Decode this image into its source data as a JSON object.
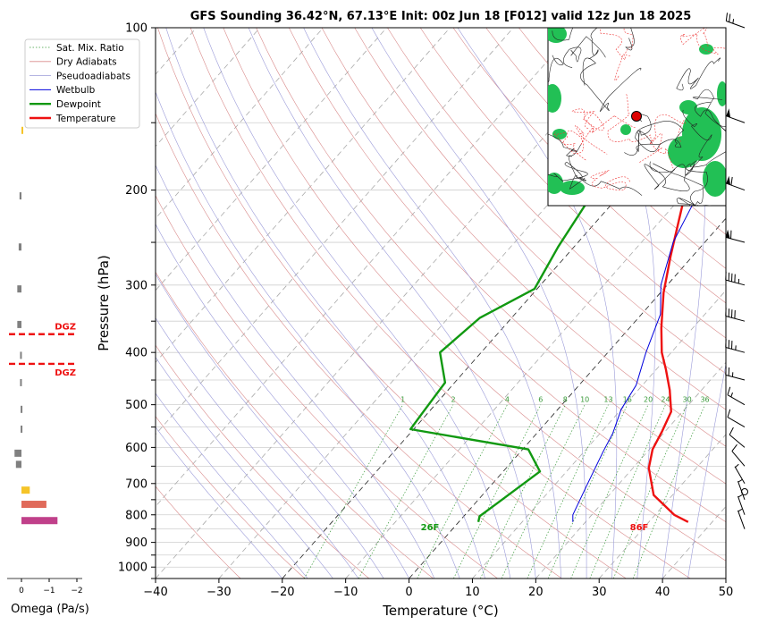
{
  "chart_data": {
    "type": "line",
    "title": "GFS Sounding 36.42°N, 67.13°E Init: 00z Jun 18 [F012] valid 12z Jun 18 2025",
    "xlabel": "Temperature (°C)",
    "ylabel": "Pressure (hPa)",
    "xlim": [
      -40,
      50
    ],
    "ylim": [
      1050,
      100
    ],
    "y_scale": "log",
    "x_ticks": [
      "−40",
      "−30",
      "−20",
      "−10",
      "0",
      "10",
      "20",
      "30",
      "40",
      "50"
    ],
    "y_ticks": [
      "100",
      "200",
      "300",
      "400",
      "500",
      "600",
      "700",
      "800",
      "900",
      "1000"
    ],
    "grid": true,
    "legend_position": "top-left",
    "legend": [
      "Sat. Mix. Ratio",
      "Dry Adiabats",
      "Pseudoadiabats",
      "Wetbulb",
      "Dewpoint",
      "Temperature"
    ],
    "colors": {
      "temperature": "#ee1111",
      "dewpoint": "#119911",
      "wetbulb": "#0000dd",
      "dry_adiabat": "#d98b8b",
      "pseudoadiabat": "#9b9bd9",
      "mix_ratio": "#3a9a3a",
      "dgz": "#ee1111",
      "isotherm": "#999999"
    },
    "series": [
      {
        "name": "Temperature",
        "points": [
          [
            36.2,
            825
          ],
          [
            33,
            800
          ],
          [
            27,
            735
          ],
          [
            22.5,
            655
          ],
          [
            20.5,
            605
          ],
          [
            19.5,
            560
          ],
          [
            18.2,
            515
          ],
          [
            15,
            470
          ],
          [
            11.5,
            430
          ],
          [
            8.5,
            400
          ],
          [
            5,
            360
          ],
          [
            0.5,
            310
          ],
          [
            -3.5,
            265
          ],
          [
            -8.5,
            215
          ],
          [
            -12,
            185
          ],
          [
            -14.5,
            165
          ],
          [
            -15.5,
            155
          ],
          [
            -17,
            140
          ],
          [
            -18.5,
            128
          ],
          [
            -20.5,
            115
          ],
          [
            -22.5,
            102
          ]
        ]
      },
      {
        "name": "Dewpoint",
        "points": [
          [
            3.1,
            825
          ],
          [
            2.5,
            805
          ],
          [
            3.5,
            760
          ],
          [
            5.8,
            665
          ],
          [
            0.9,
            605
          ],
          [
            -20.5,
            555
          ],
          [
            -20.9,
            515
          ],
          [
            -21.5,
            455
          ],
          [
            -26.5,
            400
          ],
          [
            -25,
            345
          ],
          [
            -20.4,
            305
          ],
          [
            -22.5,
            255
          ],
          [
            -24.4,
            205
          ],
          [
            -24.7,
            155
          ],
          [
            -23,
            127
          ],
          [
            -20.7,
            102
          ]
        ]
      },
      {
        "name": "Wetbulb",
        "points": [
          [
            18,
            825
          ],
          [
            17,
            800
          ],
          [
            15,
            700
          ],
          [
            13,
            610
          ],
          [
            12,
            565
          ],
          [
            10,
            510
          ],
          [
            9,
            460
          ],
          [
            6,
            400
          ],
          [
            3,
            340
          ],
          [
            -1,
            300
          ],
          [
            -5,
            250
          ],
          [
            -8,
            200
          ],
          [
            -12,
            165
          ],
          [
            -14.5,
            155
          ]
        ]
      }
    ],
    "mix_ratio_labels": [
      "1",
      "2",
      "4",
      "6",
      "8",
      "10",
      "13",
      "16",
      "20",
      "24",
      "30",
      "36"
    ],
    "mix_ratio_values": [
      1,
      2,
      4,
      6,
      8,
      10,
      13,
      16,
      20,
      24,
      30,
      36
    ],
    "dgz_levels": [
      370,
      420
    ],
    "dgz_label": "DGZ",
    "surface_temperature_label": "86F",
    "surface_dewpoint_label": "26F",
    "omega": {
      "xlabel": "Omega (Pa/s)",
      "ticks": [
        "0",
        "−1",
        "−2"
      ],
      "tick_values": [
        0,
        -1,
        -2
      ],
      "bars": [
        {
          "p": 820,
          "value": -1.3,
          "color": "#c0408a"
        },
        {
          "p": 765,
          "value": -0.9,
          "color": "#e06a5a"
        },
        {
          "p": 720,
          "value": -0.3,
          "color": "#f5c428"
        },
        {
          "p": 645,
          "value": 0.2,
          "color": "#808080"
        },
        {
          "p": 615,
          "value": 0.25,
          "color": "#808080"
        },
        {
          "p": 555,
          "value": 0.03,
          "color": "#808080"
        },
        {
          "p": 510,
          "value": 0.03,
          "color": "#808080"
        },
        {
          "p": 455,
          "value": 0.05,
          "color": "#808080"
        },
        {
          "p": 405,
          "value": 0.05,
          "color": "#808080"
        },
        {
          "p": 355,
          "value": 0.15,
          "color": "#808080"
        },
        {
          "p": 305,
          "value": 0.15,
          "color": "#808080"
        },
        {
          "p": 255,
          "value": 0.1,
          "color": "#808080"
        },
        {
          "p": 205,
          "value": 0.07,
          "color": "#808080"
        },
        {
          "p": 155,
          "value": -0.02,
          "color": "#f5c428"
        }
      ]
    },
    "wind_barbs": [
      {
        "p": 100,
        "dir": 290,
        "kt": 25
      },
      {
        "p": 150,
        "dir": 290,
        "kt": 50
      },
      {
        "p": 200,
        "dir": 290,
        "kt": 60
      },
      {
        "p": 250,
        "dir": 285,
        "kt": 60
      },
      {
        "p": 300,
        "dir": 285,
        "kt": 45
      },
      {
        "p": 350,
        "dir": 285,
        "kt": 40
      },
      {
        "p": 400,
        "dir": 285,
        "kt": 35
      },
      {
        "p": 450,
        "dir": 285,
        "kt": 25
      },
      {
        "p": 500,
        "dir": 300,
        "kt": 15
      },
      {
        "p": 550,
        "dir": 300,
        "kt": 10
      },
      {
        "p": 600,
        "dir": 310,
        "kt": 10
      },
      {
        "p": 650,
        "dir": 320,
        "kt": 10
      },
      {
        "p": 700,
        "dir": 330,
        "kt": 5
      },
      {
        "p": 725,
        "dir": 0,
        "kt": 0
      },
      {
        "p": 750,
        "dir": 340,
        "kt": 5
      },
      {
        "p": 800,
        "dir": 340,
        "kt": 5
      },
      {
        "p": 850,
        "dir": 340,
        "kt": 5
      }
    ],
    "inset_map": {
      "marker": "location"
    }
  }
}
